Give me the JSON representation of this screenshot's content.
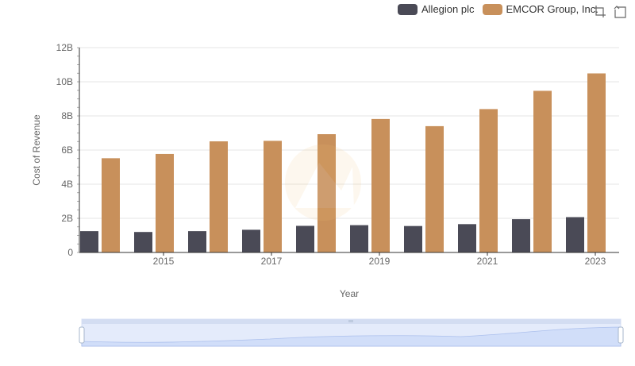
{
  "colors": {
    "series": [
      "#4a4a56",
      "#c8905b"
    ],
    "grid": "#e5e5e5",
    "axis": "#333333",
    "zoom_fill": "#d4e0fa",
    "zoom_border": "#b8c8e8"
  },
  "toolbox": {
    "icons": [
      "zoom-select-icon",
      "zoom-reset-icon"
    ]
  },
  "chart_data": {
    "type": "bar",
    "title": "",
    "xlabel": "Year",
    "ylabel": "Cost of Revenue",
    "categories": [
      "2014",
      "2015",
      "2016",
      "2017",
      "2018",
      "2019",
      "2020",
      "2021",
      "2022",
      "2023"
    ],
    "x_tick_labels": [
      "2015",
      "2017",
      "2019",
      "2021",
      "2023"
    ],
    "y_tick_labels": [
      "0",
      "2B",
      "4B",
      "6B",
      "8B",
      "10B",
      "12B"
    ],
    "ylim": [
      0,
      12000000000
    ],
    "grid": true,
    "legend_position": "top-right",
    "series": [
      {
        "name": "Allegion plc",
        "values": [
          1250000000,
          1200000000,
          1250000000,
          1330000000,
          1560000000,
          1600000000,
          1550000000,
          1660000000,
          1950000000,
          2070000000
        ]
      },
      {
        "name": "EMCOR Group, Inc.",
        "values": [
          5520000000,
          5770000000,
          6510000000,
          6540000000,
          6930000000,
          7820000000,
          7400000000,
          8400000000,
          9470000000,
          10490000000
        ]
      }
    ]
  }
}
